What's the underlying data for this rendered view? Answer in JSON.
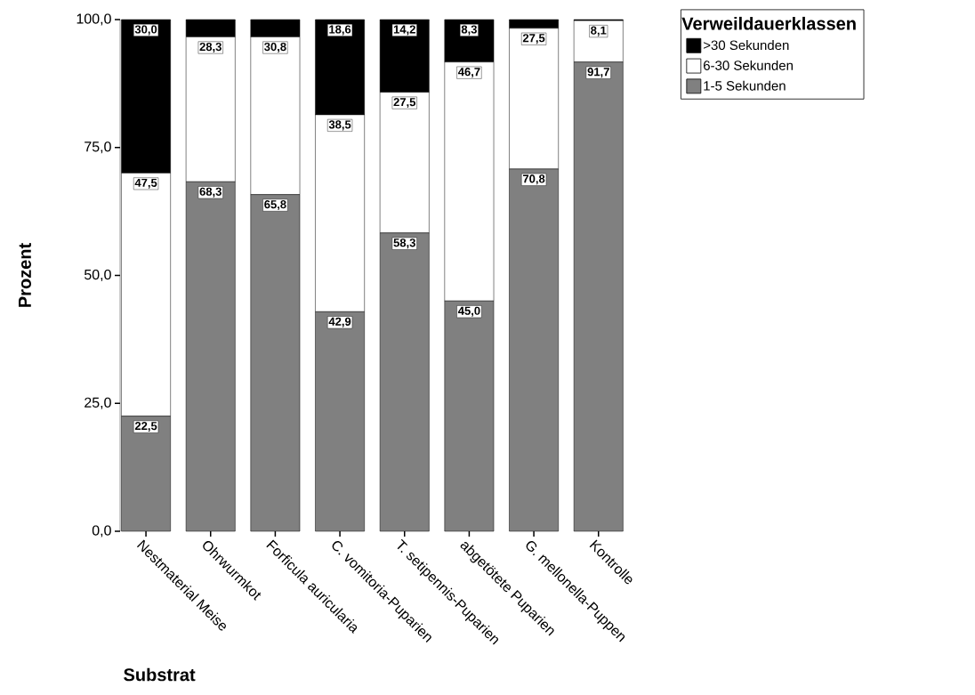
{
  "chart_data": {
    "type": "bar",
    "stacked": true,
    "xlabel": "Substrat",
    "ylabel": "Prozent",
    "legend_title": "Verweildauerklassen",
    "categories": [
      "Nestmaterial Meise",
      "Ohrwurmkot",
      "Forficula auricularia",
      "C. vomitoria-Puparien",
      "T. setipennis-Puparien",
      "abgetötete Puparien",
      "G. mellonella-Puppen",
      "Kontrolle"
    ],
    "series": [
      {
        "name": "1-5 Sekunden",
        "color": "#808080",
        "values": [
          22.5,
          68.3,
          65.8,
          42.9,
          58.3,
          45.0,
          70.8,
          91.7
        ],
        "value_labels": [
          "22,5",
          "68,3",
          "65,8",
          "42,9",
          "58,3",
          "45,0",
          "70,8",
          "91,7"
        ]
      },
      {
        "name": "6-30 Sekunden",
        "color": "#ffffff",
        "values": [
          47.5,
          28.3,
          30.8,
          38.5,
          27.5,
          46.7,
          27.5,
          8.1
        ],
        "value_labels": [
          "47,5",
          "28,3",
          "30,8",
          "38,5",
          "27,5",
          "46,7",
          "27,5",
          "8,1"
        ]
      },
      {
        "name": ">30 Sekunden",
        "color": "#000000",
        "values": [
          30.0,
          3.4,
          3.4,
          18.6,
          14.2,
          8.3,
          1.7,
          0.2
        ],
        "value_labels": [
          "30,0",
          null,
          null,
          "18,6",
          "14,2",
          "8,3",
          null,
          null
        ]
      }
    ],
    "ylim": [
      0,
      100
    ],
    "yticks": [
      {
        "value": 0,
        "label": "0,0"
      },
      {
        "value": 25,
        "label": "25,0"
      },
      {
        "value": 50,
        "label": "50,0"
      },
      {
        "value": 75,
        "label": "75,0"
      },
      {
        "value": 100,
        "label": "100,0"
      }
    ],
    "grid": false,
    "legend": "top right"
  }
}
